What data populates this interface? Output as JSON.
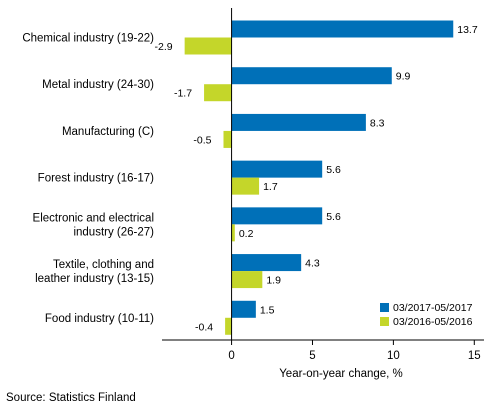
{
  "chart_data": {
    "type": "bar",
    "orientation": "horizontal",
    "categories": [
      [
        "Chemical industry (19-22)"
      ],
      [
        "Metal industry (24-30)"
      ],
      [
        "Manufacturing (C)"
      ],
      [
        "Forest industry (16-17)"
      ],
      [
        "Electronic and electrical",
        "industry (26-27)"
      ],
      [
        "Textile, clothing and",
        "leather industry (13-15)"
      ],
      [
        "Food industry (10-11)"
      ]
    ],
    "series": [
      {
        "name": "03/2017-05/2017",
        "color": "#0070b8",
        "values": [
          13.7,
          9.9,
          8.3,
          5.6,
          5.6,
          4.3,
          1.5
        ]
      },
      {
        "name": "03/2016-05/2016",
        "color": "#c4d62a",
        "values": [
          -2.9,
          -1.7,
          -0.5,
          1.7,
          0.2,
          1.9,
          -0.4
        ]
      }
    ],
    "xlabel": "Year-on-year change, %",
    "xlim": [
      -4.3,
      15.6
    ],
    "xticks": [
      0,
      5,
      10,
      15
    ],
    "grid": false,
    "legend": "bottom-right"
  },
  "source": "Source: Statistics Finland"
}
